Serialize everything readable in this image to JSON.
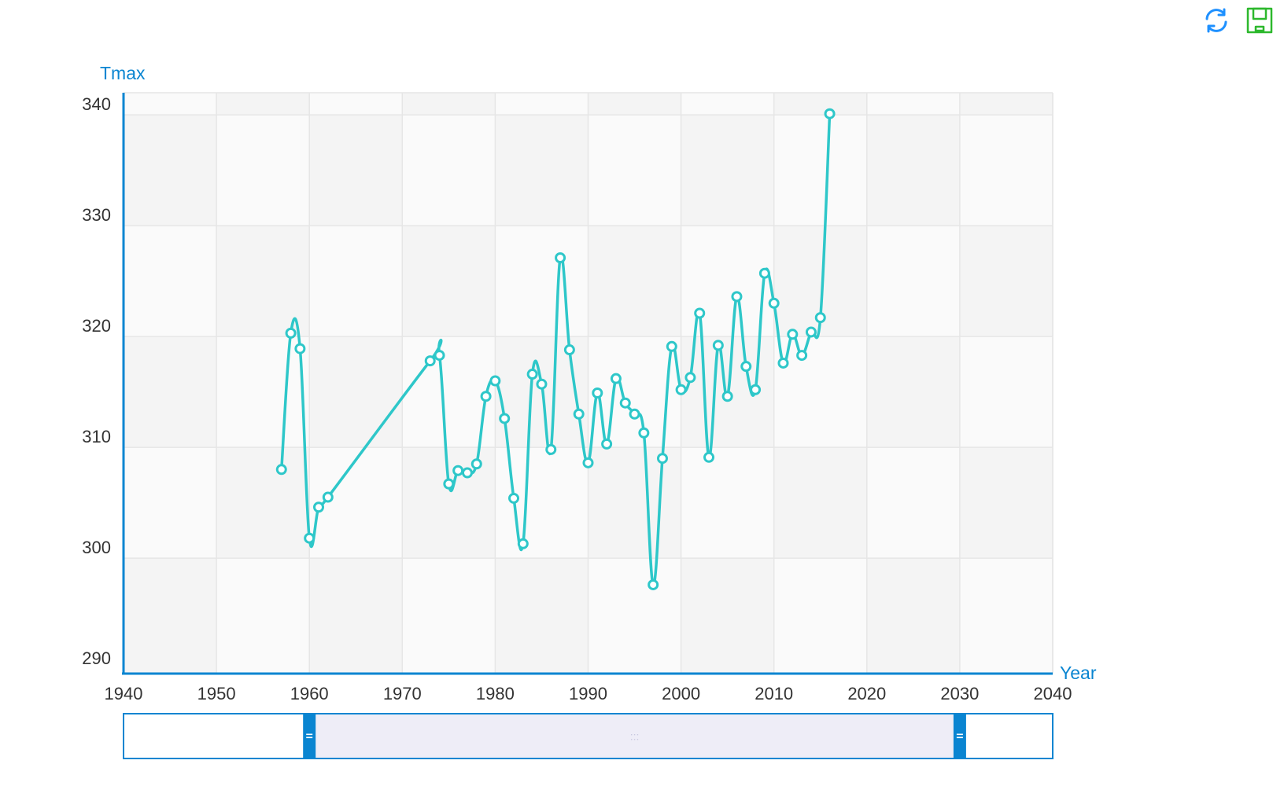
{
  "toolbox": {
    "refresh_icon": "refresh-icon",
    "save_icon": "save-as-image-icon",
    "refresh_color": "#1e90ff",
    "save_color": "#2db82d"
  },
  "colors": {
    "axis": "#0a85d1",
    "series": "#2ec7c9",
    "grid": "#e6e6e6",
    "band_a": "#f4f4f4",
    "band_b": "#fafafa",
    "zoom_fill": "#eeedf7"
  },
  "chart_data": {
    "type": "line",
    "xlabel": "Year",
    "ylabel": "Tmax",
    "xlim": [
      1940,
      2040
    ],
    "ylim": [
      290,
      340
    ],
    "xticks": [
      "1940",
      "1950",
      "1960",
      "1970",
      "1980",
      "1990",
      "2000",
      "2010",
      "2020",
      "2030",
      "2040"
    ],
    "yticks": [
      "290",
      "300",
      "310",
      "320",
      "330",
      "340"
    ],
    "grid": true,
    "series": [
      {
        "points": [
          [
            1957,
            307.0
          ],
          [
            1958,
            319.3
          ],
          [
            1959,
            317.9
          ],
          [
            1960,
            300.8
          ],
          [
            1961,
            303.6
          ],
          [
            1962,
            304.5
          ],
          [
            1973,
            316.8
          ],
          [
            1974,
            317.3
          ],
          [
            1975,
            305.7
          ],
          [
            1976,
            306.9
          ],
          [
            1977,
            306.7
          ],
          [
            1978,
            307.5
          ],
          [
            1979,
            313.6
          ],
          [
            1980,
            315.0
          ],
          [
            1981,
            311.6
          ],
          [
            1982,
            304.4
          ],
          [
            1983,
            300.3
          ],
          [
            1984,
            315.6
          ],
          [
            1985,
            314.7
          ],
          [
            1986,
            308.8
          ],
          [
            1987,
            326.1
          ],
          [
            1988,
            317.8
          ],
          [
            1989,
            312.0
          ],
          [
            1990,
            307.6
          ],
          [
            1991,
            313.9
          ],
          [
            1992,
            309.3
          ],
          [
            1993,
            315.2
          ],
          [
            1994,
            313.0
          ],
          [
            1995,
            312.0
          ],
          [
            1996,
            310.3
          ],
          [
            1997,
            296.6
          ],
          [
            1998,
            308.0
          ],
          [
            1999,
            318.1
          ],
          [
            2000,
            314.2
          ],
          [
            2001,
            315.3
          ],
          [
            2002,
            321.1
          ],
          [
            2003,
            308.1
          ],
          [
            2004,
            318.2
          ],
          [
            2005,
            313.6
          ],
          [
            2006,
            322.6
          ],
          [
            2007,
            316.3
          ],
          [
            2008,
            314.2
          ],
          [
            2009,
            324.7
          ],
          [
            2010,
            322.0
          ],
          [
            2011,
            316.6
          ],
          [
            2012,
            319.2
          ],
          [
            2013,
            317.3
          ],
          [
            2014,
            319.4
          ],
          [
            2015,
            320.7
          ],
          [
            2016,
            339.1
          ]
        ]
      }
    ],
    "zoom_range": [
      1960,
      2030
    ]
  }
}
